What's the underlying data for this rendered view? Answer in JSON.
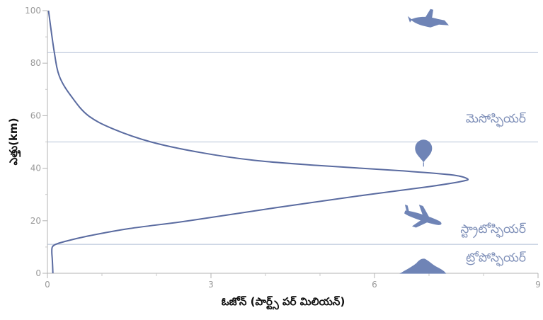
{
  "chart_data": {
    "type": "line",
    "xlabel": "ఓజోన్ (పార్ట్స్ పర్ మిలియన్)",
    "ylabel": "ఎత్తు(km)",
    "xlim": [
      0,
      9
    ],
    "ylim": [
      0,
      100
    ],
    "x_ticks": [
      0,
      3,
      6,
      9
    ],
    "y_ticks": [
      0,
      20,
      40,
      60,
      80,
      100
    ],
    "grid": false,
    "series": [
      {
        "x": [
          0.1,
          0.09,
          0.08,
          0.09,
          0.15,
          0.3,
          0.7,
          1.5,
          2.6,
          4.2,
          5.9,
          7.0,
          7.6,
          7.7,
          7.4,
          6.5,
          5.0,
          3.8,
          2.8,
          1.9,
          1.2,
          0.75,
          0.45,
          0.22,
          0.12,
          0.02
        ],
        "y": [
          0,
          5,
          8,
          10,
          11,
          12,
          14,
          17,
          20,
          25,
          30,
          33,
          35,
          36,
          37.5,
          39,
          41,
          43,
          46,
          50,
          55,
          60,
          67,
          75,
          85,
          100
        ],
        "color": "#5a6ba0"
      }
    ],
    "layer_boundaries": [
      11,
      50,
      84
    ],
    "layers": [
      {
        "label": "మెసోస్ఫియర్",
        "y": 59
      },
      {
        "label": "స్ట్రాటోస్ఫియర్",
        "y": 17
      },
      {
        "label": "ట్రోపోస్ఫియర్",
        "y": 6
      }
    ],
    "icons": [
      {
        "name": "spaceship-icon",
        "x": 7.0,
        "y": 96
      },
      {
        "name": "balloon-icon",
        "x": 6.9,
        "y": 46
      },
      {
        "name": "airplane-icon",
        "x": 6.9,
        "y": 21
      },
      {
        "name": "mountain-icon",
        "x": 6.9,
        "y": 2
      }
    ],
    "colors": {
      "curve": "#5a6ba0",
      "boundary": "#c5cfe0",
      "icon": "#6f84b6",
      "layer_label": "#7e8fb8"
    }
  }
}
